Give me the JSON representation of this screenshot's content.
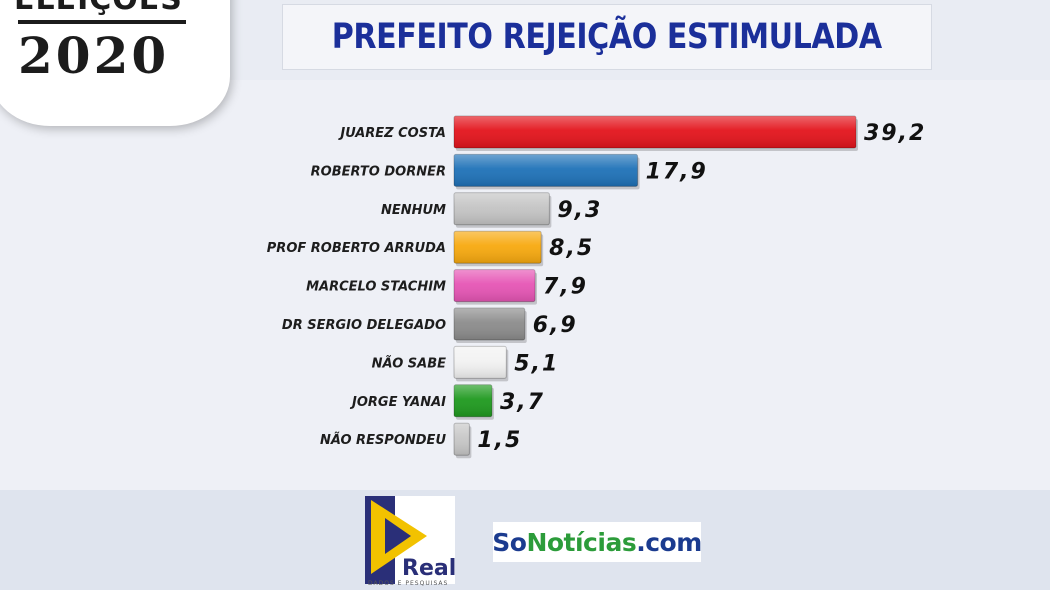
{
  "badge": {
    "top": "ELEIÇÕES",
    "year": "2020"
  },
  "title": "PREFEITO REJEIÇÃO ESTIMULADA",
  "chart_data": {
    "type": "bar",
    "orientation": "horizontal",
    "title": "PREFEITO REJEIÇÃO ESTIMULADA",
    "categories": [
      "JUAREZ COSTA",
      "ROBERTO DORNER",
      "NENHUM",
      "PROF ROBERTO ARRUDA",
      "MARCELO STACHIM",
      "DR SERGIO DELEGADO",
      "NÃO SABE",
      "JORGE YANAI",
      "NÃO RESPONDEU"
    ],
    "values": [
      39.2,
      17.9,
      9.3,
      8.5,
      7.9,
      6.9,
      5.1,
      3.7,
      1.5
    ],
    "value_labels": [
      "39,2",
      "17,9",
      "9,3",
      "8,5",
      "7,9",
      "6,9",
      "5,1",
      "3,7",
      "1,5"
    ],
    "colors": [
      "#e3141c",
      "#1f72b8",
      "#c4c4c4",
      "#f7a90f",
      "#e655b5",
      "#8c8c8c",
      "#f2f2f2",
      "#1f9a1f",
      "#c7c7c7"
    ],
    "xlim": [
      0,
      39.2
    ],
    "grid": false,
    "legend": "none"
  },
  "footer": {
    "real_logo_text": "Real",
    "real_logo_sub": "DADOS E PESQUISAS",
    "sonoticias": {
      "part1": "So",
      "part2": "Notícias",
      "part3": ".com",
      "color1": "#1b3b8f",
      "color2": "#2c9c3a"
    }
  }
}
